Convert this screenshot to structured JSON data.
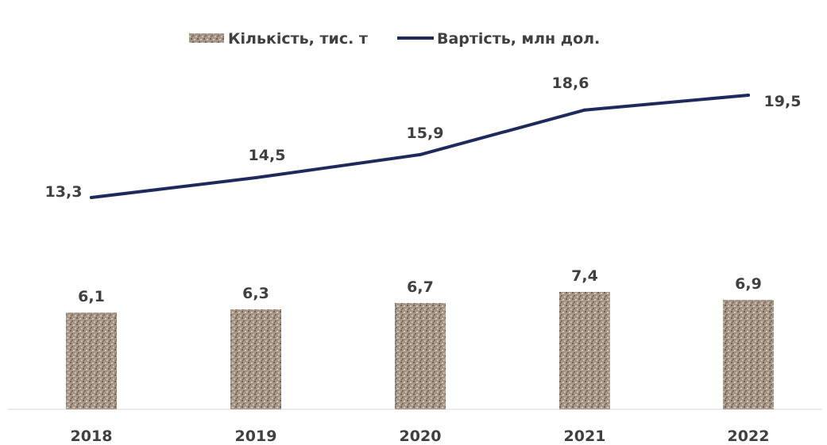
{
  "chart_data": {
    "type": "bar",
    "categories": [
      "2018",
      "2019",
      "2020",
      "2021",
      "2022"
    ],
    "series": [
      {
        "name": "Кількість, тис. т",
        "type": "bar",
        "values": [
          6.1,
          6.3,
          6.7,
          7.4,
          6.9
        ],
        "labels": [
          "6,1",
          "6,3",
          "6,7",
          "7,4",
          "6,9"
        ]
      },
      {
        "name": "Вартість, млн дол.",
        "type": "line",
        "values": [
          13.3,
          14.5,
          15.9,
          18.6,
          19.5
        ],
        "labels": [
          "13,3",
          "14,5",
          "15,9",
          "18,6",
          "19,5"
        ]
      }
    ],
    "title": "",
    "xlabel": "",
    "ylabel": "",
    "legend_position": "top",
    "grid": false,
    "colors": {
      "bar": "#a2917f",
      "line": "#1f2a5c",
      "text": "#404040",
      "axis": "#d9d9d9"
    }
  }
}
